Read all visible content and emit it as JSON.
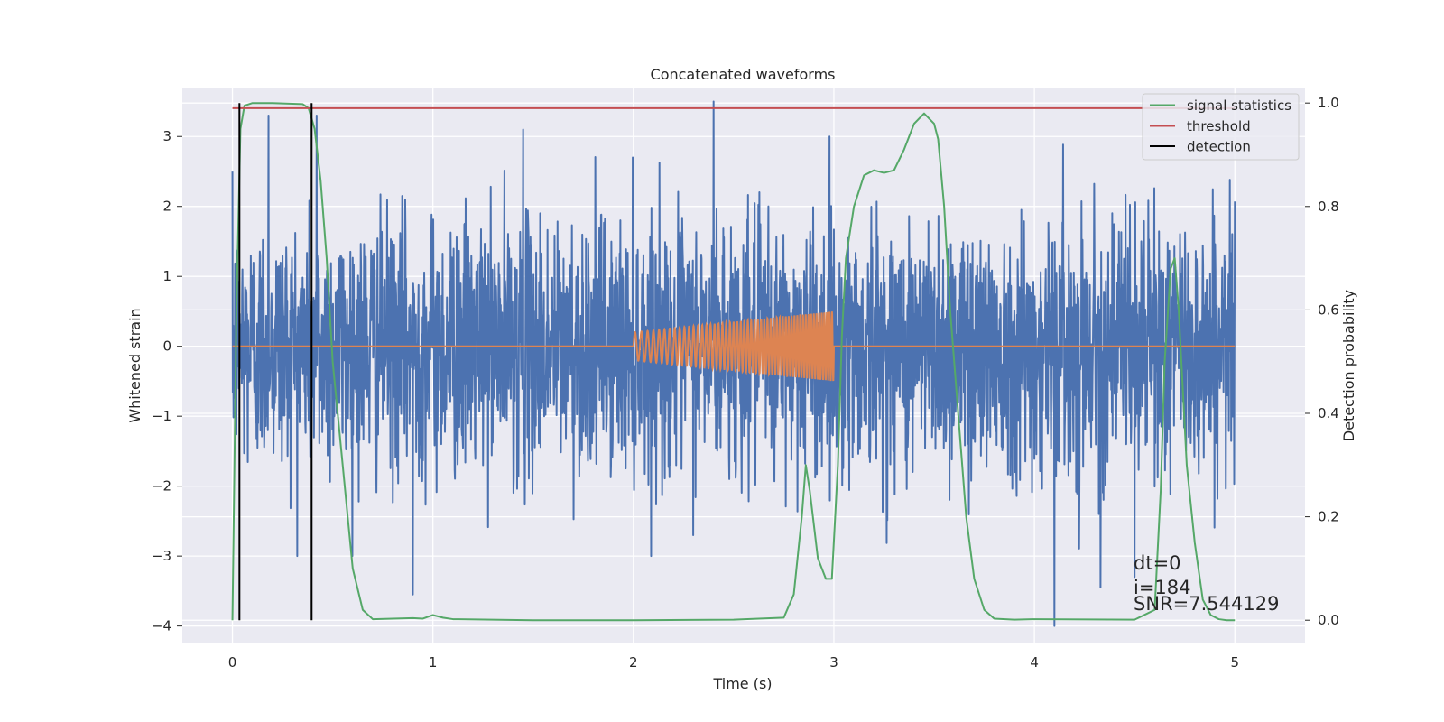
{
  "chart_data": {
    "type": "line",
    "title": "Concatenated waveforms",
    "xlabel": "Time (s)",
    "ylabel": "Whitened strain",
    "ylabel_right": "Detection probability",
    "xlim": [
      -0.25,
      5.35
    ],
    "ylim": [
      -4.25,
      3.7
    ],
    "ylim_right": [
      -0.045,
      1.03
    ],
    "x_ticks": [
      0,
      1,
      2,
      3,
      4,
      5
    ],
    "y_ticks": [
      -4,
      -3,
      -2,
      -1,
      0,
      1,
      2,
      3
    ],
    "y_ticks_right": [
      0.0,
      0.2,
      0.4,
      0.6,
      0.8,
      1.0
    ],
    "x_tick_labels": [
      "0",
      "1",
      "2",
      "3",
      "4",
      "5"
    ],
    "y_tick_labels": [
      "−4",
      "−3",
      "−2",
      "−1",
      "0",
      "1",
      "2",
      "3"
    ],
    "y_tick_labels_right": [
      "0.0",
      "0.2",
      "0.4",
      "0.6",
      "0.8",
      "1.0"
    ],
    "grid": true,
    "legend_position": "top-right",
    "series": [
      {
        "name": "",
        "axis": "left",
        "color": "#4c72b0",
        "kind": "noise",
        "x_range": [
          0,
          5
        ],
        "typical_amplitude": 0.9,
        "peak_values": [
          {
            "x": 2.4,
            "y": 3.5
          },
          {
            "x": 0.18,
            "y": 3.3
          },
          {
            "x": 0.42,
            "y": 3.3
          },
          {
            "x": 1.45,
            "y": 3.1
          },
          {
            "x": 0.9,
            "y": -3.55
          },
          {
            "x": 4.1,
            "y": -4.0
          },
          {
            "x": 4.33,
            "y": -3.45
          },
          {
            "x": 4.5,
            "y": -3.3
          }
        ]
      },
      {
        "name": "",
        "axis": "left",
        "color": "#dd8452",
        "kind": "chirp",
        "x_range": [
          0,
          5
        ],
        "chirp_range": [
          2.0,
          3.0
        ],
        "amplitude_start": 0.2,
        "amplitude_end": 0.5
      },
      {
        "name": "signal statistics",
        "axis": "right",
        "color": "#55a868",
        "x": [
          0.0,
          0.02,
          0.04,
          0.06,
          0.1,
          0.2,
          0.35,
          0.38,
          0.41,
          0.44,
          0.47,
          0.5,
          0.55,
          0.6,
          0.65,
          0.7,
          0.8,
          0.9,
          0.95,
          1.0,
          1.05,
          1.1,
          1.5,
          2.0,
          2.5,
          2.75,
          2.8,
          2.84,
          2.86,
          2.88,
          2.92,
          2.96,
          2.99,
          3.02,
          3.04,
          3.06,
          3.1,
          3.15,
          3.2,
          3.25,
          3.3,
          3.35,
          3.4,
          3.45,
          3.5,
          3.52,
          3.55,
          3.58,
          3.62,
          3.66,
          3.7,
          3.75,
          3.8,
          3.9,
          4.0,
          4.5,
          4.6,
          4.63,
          4.65,
          4.68,
          4.7,
          4.72,
          4.74,
          4.76,
          4.8,
          4.84,
          4.88,
          4.92,
          4.96,
          5.0
        ],
        "y": [
          0.0,
          0.6,
          0.95,
          0.995,
          1.0,
          1.0,
          0.998,
          0.99,
          0.95,
          0.85,
          0.7,
          0.5,
          0.3,
          0.1,
          0.02,
          0.002,
          0.003,
          0.004,
          0.003,
          0.01,
          0.005,
          0.002,
          0.0,
          0.0,
          0.001,
          0.005,
          0.05,
          0.2,
          0.3,
          0.25,
          0.12,
          0.08,
          0.08,
          0.3,
          0.55,
          0.7,
          0.8,
          0.86,
          0.87,
          0.865,
          0.87,
          0.91,
          0.96,
          0.98,
          0.96,
          0.93,
          0.8,
          0.6,
          0.4,
          0.2,
          0.08,
          0.02,
          0.003,
          0.001,
          0.002,
          0.001,
          0.02,
          0.25,
          0.5,
          0.68,
          0.7,
          0.6,
          0.45,
          0.3,
          0.15,
          0.04,
          0.01,
          0.002,
          0.0,
          0.0
        ]
      },
      {
        "name": "threshold",
        "axis": "right",
        "color": "#c44e52",
        "x": [
          0.0,
          5.0
        ],
        "y": [
          0.99,
          0.99
        ]
      },
      {
        "name": "detection",
        "axis": "right",
        "color": "#000000",
        "kind": "vlines",
        "x": [
          0.035,
          0.395
        ],
        "y": [
          0.0,
          1.0
        ]
      }
    ],
    "annotations": [
      "dt=0",
      "i=184",
      "SNR=7.544129"
    ]
  }
}
